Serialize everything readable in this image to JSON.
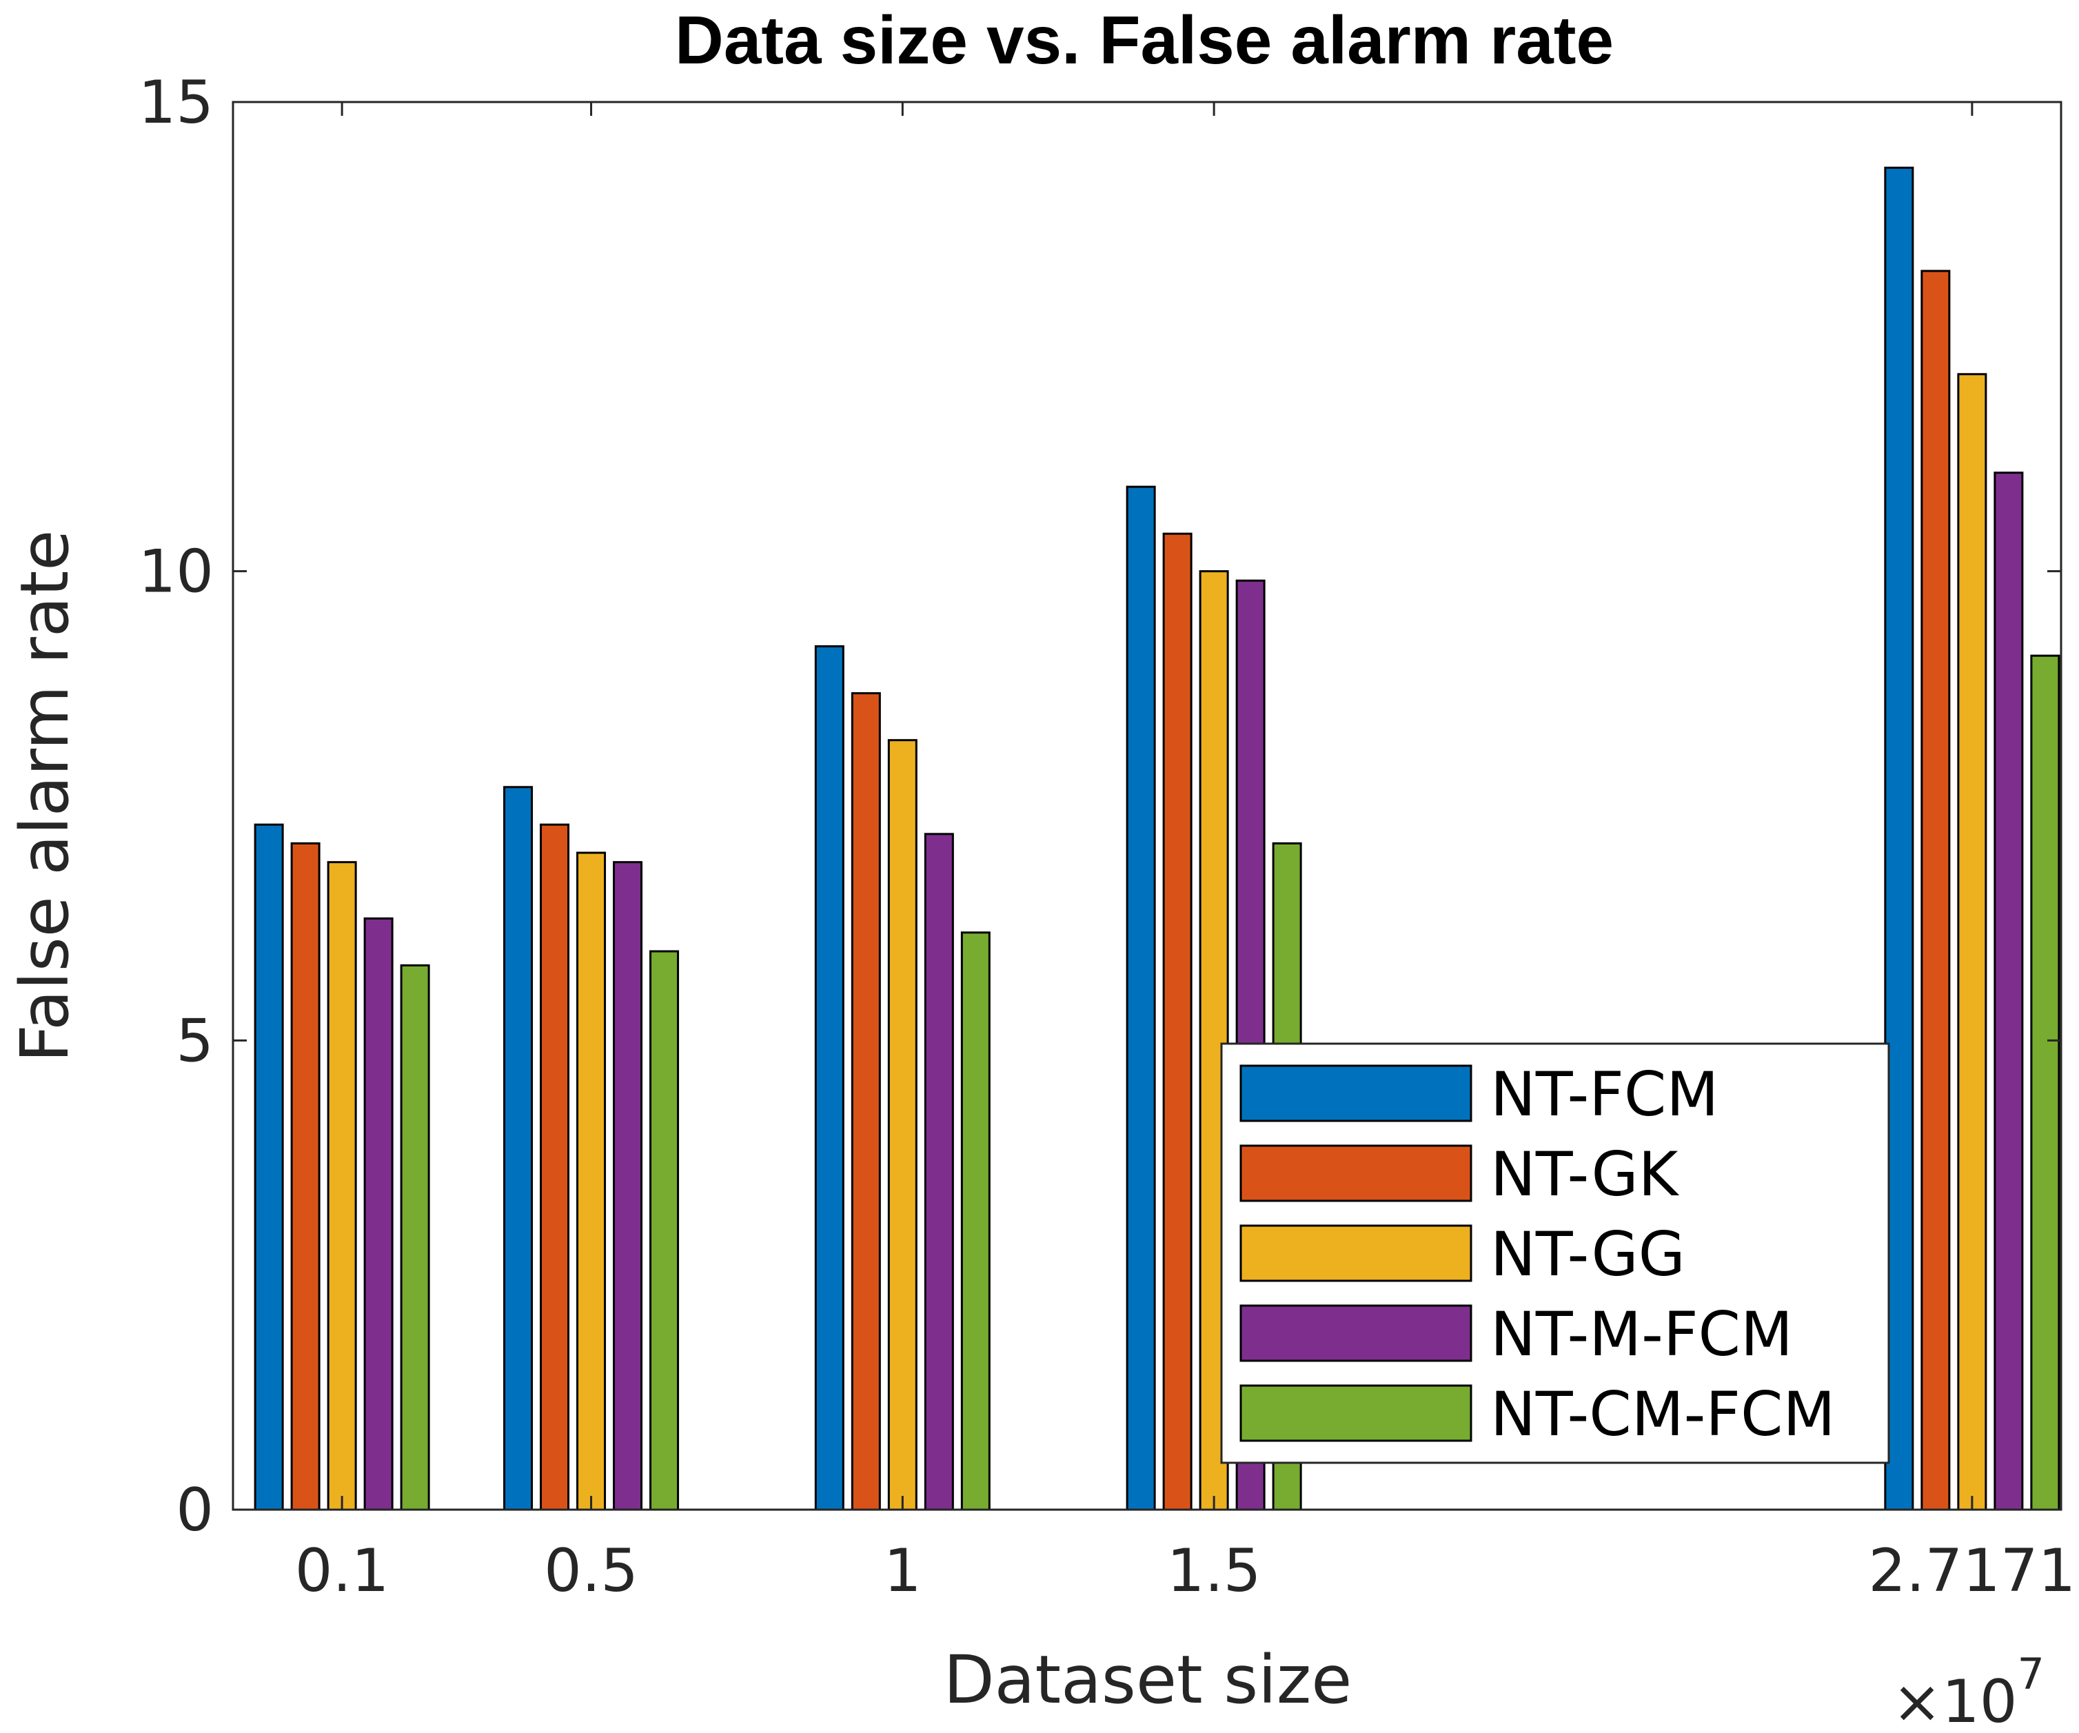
{
  "chart_data": {
    "type": "bar",
    "title": "Data size vs. False alarm rate",
    "xlabel": "Dataset size",
    "ylabel": "False alarm rate",
    "x": [
      0.1,
      0.5,
      1,
      1.5,
      2.7171
    ],
    "x_tick_labels": [
      "0.1",
      "0.5",
      "1",
      "1.5",
      "2.7171"
    ],
    "x_multiplier": {
      "base": "×10",
      "exponent": "7"
    },
    "xlim": [
      -0.075,
      2.86
    ],
    "ylim": [
      0,
      15
    ],
    "y_ticks": [
      0,
      5,
      10,
      15
    ],
    "y_tick_labels": [
      "0",
      "5",
      "10",
      "15"
    ],
    "grid": false,
    "legend_position": "lower-right",
    "series": [
      {
        "name": "NT-FCM",
        "color": "#0072BD",
        "values": [
          7.3,
          7.7,
          9.2,
          10.9,
          14.3
        ]
      },
      {
        "name": "NT-GK",
        "color": "#D95319",
        "values": [
          7.1,
          7.3,
          8.7,
          10.4,
          13.2
        ]
      },
      {
        "name": "NT-GG",
        "color": "#EDB120",
        "values": [
          6.9,
          7.0,
          8.2,
          10.0,
          12.1
        ]
      },
      {
        "name": "NT-M-FCM",
        "color": "#7E2F8E",
        "values": [
          6.3,
          6.9,
          7.2,
          9.9,
          11.05
        ]
      },
      {
        "name": "NT-CM-FCM",
        "color": "#77AC30",
        "values": [
          5.8,
          5.95,
          6.15,
          7.1,
          9.1
        ]
      }
    ]
  }
}
